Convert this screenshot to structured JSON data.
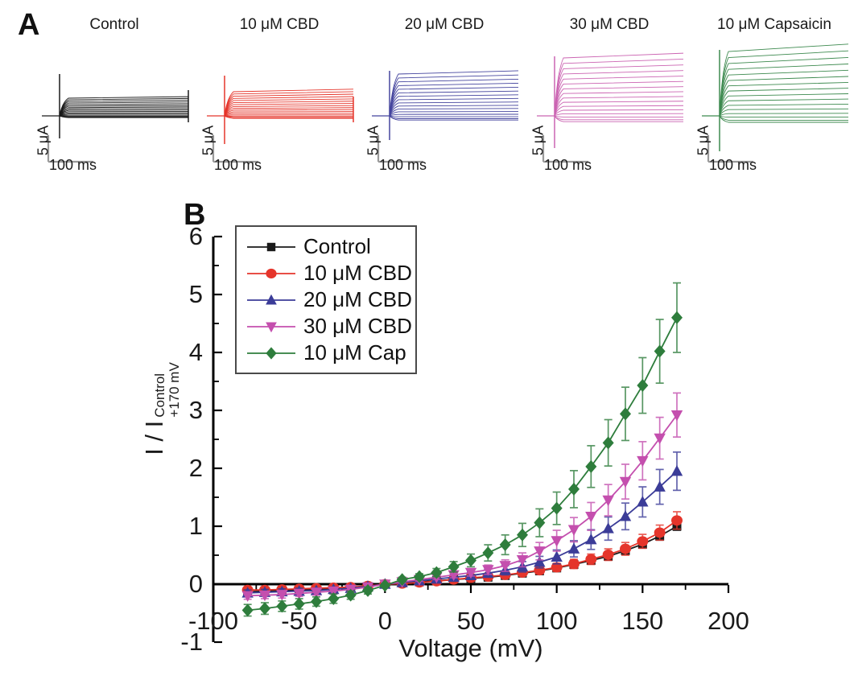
{
  "panelA": {
    "label": "A",
    "scale_bar": {
      "current_label": "5 μA",
      "time_label": "100 ms"
    },
    "groups": [
      {
        "title": "Control",
        "color": "#1a1a1a",
        "n_traces": 16,
        "max_amp": 22,
        "spike_up": 52,
        "spike_down": 28,
        "end_spike": true,
        "end_up": 32,
        "end_down": 8,
        "drift": 1
      },
      {
        "title": "10 μM CBD",
        "color": "#e5352b",
        "n_traces": 16,
        "max_amp": 30,
        "spike_up": 50,
        "spike_down": 35,
        "end_spike": true,
        "end_up": 24,
        "end_down": 8,
        "drift": 2
      },
      {
        "title": "20 μM CBD",
        "color": "#45459e",
        "n_traces": 16,
        "max_amp": 52,
        "spike_up": 56,
        "spike_down": 30,
        "end_spike": false,
        "end_up": 0,
        "end_down": 0,
        "drift": 2
      },
      {
        "title": "30 μM CBD",
        "color": "#cb64b2",
        "n_traces": 16,
        "max_amp": 72,
        "spike_up": 74,
        "spike_down": 40,
        "end_spike": false,
        "end_up": 0,
        "end_down": 0,
        "drift": 3
      },
      {
        "title": "10 μM Capsaicin",
        "color": "#3d8a4f",
        "n_traces": 16,
        "max_amp": 80,
        "spike_up": 82,
        "spike_down": 44,
        "end_spike": false,
        "end_up": 0,
        "end_down": 0,
        "drift": 6
      }
    ]
  },
  "panelB": {
    "label": "B"
  },
  "chart_data": {
    "type": "line",
    "title": "",
    "xlabel": "Voltage (mV)",
    "ylabel": "I / I",
    "ylabel_sup": "Control",
    "ylabel_sub": "+170 mV",
    "xlim": [
      -100,
      200
    ],
    "ylim": [
      -1,
      6
    ],
    "x_major_ticks": [
      -100,
      -50,
      0,
      50,
      100,
      150,
      200
    ],
    "x_minor_ticks": [
      -75,
      -25,
      25,
      75,
      125,
      175
    ],
    "y_major_ticks": [
      -1,
      0,
      1,
      2,
      3,
      4,
      5,
      6
    ],
    "y_minor_ticks": [
      -0.5,
      0.5,
      1.5,
      2.5,
      3.5,
      4.5,
      5.5
    ],
    "grid": false,
    "legend_position": "top-left",
    "x": [
      -80,
      -70,
      -60,
      -50,
      -40,
      -30,
      -20,
      -10,
      0,
      10,
      20,
      30,
      40,
      50,
      60,
      70,
      80,
      90,
      100,
      110,
      120,
      130,
      140,
      150,
      160,
      170
    ],
    "series": [
      {
        "name": "Control",
        "marker": "square",
        "color": "#1a1a1a",
        "values": [
          -0.13,
          -0.12,
          -0.11,
          -0.1,
          -0.09,
          -0.08,
          -0.06,
          -0.04,
          0.0,
          0.02,
          0.04,
          0.06,
          0.08,
          0.1,
          0.12,
          0.15,
          0.19,
          0.23,
          0.28,
          0.34,
          0.41,
          0.48,
          0.58,
          0.69,
          0.83,
          1.0
        ],
        "errors": [
          0.03,
          0.03,
          0.03,
          0.03,
          0.03,
          0.02,
          0.02,
          0.02,
          0.01,
          0.01,
          0.02,
          0.02,
          0.02,
          0.03,
          0.03,
          0.03,
          0.04,
          0.04,
          0.04,
          0.05,
          0.05,
          0.05,
          0.06,
          0.06,
          0.07,
          0.07
        ]
      },
      {
        "name": "10 μM CBD",
        "marker": "circle",
        "color": "#e5352b",
        "values": [
          -0.1,
          -0.1,
          -0.09,
          -0.08,
          -0.07,
          -0.06,
          -0.05,
          -0.03,
          0.0,
          0.01,
          0.03,
          0.05,
          0.08,
          0.11,
          0.13,
          0.16,
          0.2,
          0.24,
          0.29,
          0.35,
          0.43,
          0.51,
          0.61,
          0.74,
          0.89,
          1.1
        ],
        "errors": [
          0.04,
          0.04,
          0.04,
          0.04,
          0.03,
          0.03,
          0.03,
          0.02,
          0.01,
          0.02,
          0.02,
          0.03,
          0.03,
          0.04,
          0.04,
          0.05,
          0.05,
          0.06,
          0.07,
          0.08,
          0.09,
          0.1,
          0.11,
          0.12,
          0.13,
          0.15
        ]
      },
      {
        "name": "20 μM CBD",
        "marker": "triangle-up",
        "color": "#3b3c98",
        "values": [
          -0.15,
          -0.14,
          -0.13,
          -0.12,
          -0.11,
          -0.09,
          -0.07,
          -0.04,
          0.0,
          0.03,
          0.06,
          0.09,
          0.12,
          0.15,
          0.19,
          0.24,
          0.3,
          0.38,
          0.47,
          0.61,
          0.77,
          0.96,
          1.17,
          1.42,
          1.68,
          1.95
        ],
        "errors": [
          0.05,
          0.05,
          0.05,
          0.05,
          0.04,
          0.04,
          0.03,
          0.02,
          0.01,
          0.02,
          0.03,
          0.04,
          0.05,
          0.06,
          0.07,
          0.08,
          0.09,
          0.1,
          0.12,
          0.14,
          0.17,
          0.2,
          0.23,
          0.26,
          0.3,
          0.33
        ]
      },
      {
        "name": "30 μM CBD",
        "marker": "triangle-down",
        "color": "#c44fae",
        "values": [
          -0.2,
          -0.19,
          -0.18,
          -0.16,
          -0.14,
          -0.12,
          -0.09,
          -0.05,
          0.0,
          0.04,
          0.08,
          0.12,
          0.16,
          0.2,
          0.25,
          0.32,
          0.42,
          0.57,
          0.75,
          0.94,
          1.17,
          1.45,
          1.77,
          2.13,
          2.52,
          2.92
        ],
        "errors": [
          0.06,
          0.06,
          0.06,
          0.05,
          0.05,
          0.05,
          0.04,
          0.03,
          0.01,
          0.02,
          0.03,
          0.04,
          0.05,
          0.06,
          0.08,
          0.1,
          0.12,
          0.15,
          0.18,
          0.21,
          0.24,
          0.27,
          0.3,
          0.33,
          0.36,
          0.38
        ]
      },
      {
        "name": "10 μM Cap",
        "marker": "diamond",
        "color": "#2e7d3c",
        "values": [
          -0.45,
          -0.42,
          -0.38,
          -0.34,
          -0.3,
          -0.25,
          -0.19,
          -0.11,
          -0.02,
          0.08,
          0.13,
          0.2,
          0.3,
          0.41,
          0.54,
          0.68,
          0.85,
          1.06,
          1.31,
          1.64,
          2.03,
          2.44,
          2.94,
          3.43,
          4.02,
          4.6
        ],
        "errors": [
          0.1,
          0.1,
          0.09,
          0.09,
          0.08,
          0.08,
          0.07,
          0.06,
          0.03,
          0.04,
          0.05,
          0.07,
          0.09,
          0.11,
          0.14,
          0.17,
          0.2,
          0.24,
          0.28,
          0.32,
          0.36,
          0.4,
          0.46,
          0.48,
          0.55,
          0.6
        ]
      }
    ]
  }
}
